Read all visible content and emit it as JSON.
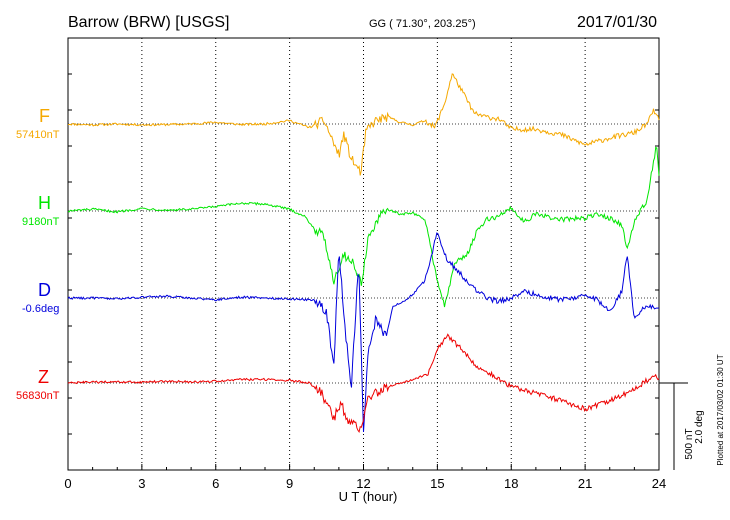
{
  "header": {
    "station": "Barrow (BRW)  [USGS]",
    "coords": "GG ( 71.30°, 203.25°)",
    "date": "2017/01/30"
  },
  "xlabel": "U T (hour)",
  "scale_label_nt": "500 nT",
  "scale_label_deg": "2.0 deg",
  "plotted_note": "Plotted at 2017/03/02 01:30 UT",
  "chart_data": {
    "type": "line",
    "xlim": [
      0,
      24
    ],
    "x_ticks": [
      0,
      3,
      6,
      9,
      12,
      15,
      18,
      21,
      24
    ],
    "x_tick_labels": [
      "0",
      "3",
      "6",
      "9",
      "12",
      "15",
      "18",
      "21",
      "24"
    ],
    "grid": "dotted vertical lines every 3 hours",
    "series": [
      {
        "name": "F",
        "baseline_label": "57410nT",
        "color": "#f5a800",
        "points": [
          [
            0,
            0
          ],
          [
            1,
            -5
          ],
          [
            2,
            0
          ],
          [
            3,
            -5
          ],
          [
            4,
            -3
          ],
          [
            5,
            0
          ],
          [
            6,
            10
          ],
          [
            7,
            -3
          ],
          [
            8,
            0
          ],
          [
            9,
            20
          ],
          [
            9.8,
            -20
          ],
          [
            10.4,
            20
          ],
          [
            10.7,
            -80
          ],
          [
            11,
            -180
          ],
          [
            11.2,
            -60
          ],
          [
            11.5,
            -200
          ],
          [
            11.9,
            -280
          ],
          [
            12.1,
            -40
          ],
          [
            12.5,
            20
          ],
          [
            13,
            40
          ],
          [
            13.5,
            10
          ],
          [
            14,
            -5
          ],
          [
            14.5,
            20
          ],
          [
            14.9,
            -20
          ],
          [
            15.3,
            120
          ],
          [
            15.6,
            290
          ],
          [
            16,
            190
          ],
          [
            16.5,
            60
          ],
          [
            17,
            40
          ],
          [
            17.5,
            30
          ],
          [
            18,
            -30
          ],
          [
            19,
            -30
          ],
          [
            20,
            -60
          ],
          [
            21,
            -120
          ],
          [
            22,
            -80
          ],
          [
            23,
            -50
          ],
          [
            23.5,
            0
          ],
          [
            23.8,
            80
          ],
          [
            24,
            20
          ]
        ]
      },
      {
        "name": "H",
        "baseline_label": "9180nT",
        "color": "#00e600",
        "points": [
          [
            0,
            0
          ],
          [
            1,
            10
          ],
          [
            2,
            -5
          ],
          [
            3,
            15
          ],
          [
            4,
            5
          ],
          [
            5,
            10
          ],
          [
            6,
            25
          ],
          [
            7,
            45
          ],
          [
            8,
            40
          ],
          [
            9,
            10
          ],
          [
            9.6,
            -30
          ],
          [
            10,
            -100
          ],
          [
            10.4,
            -150
          ],
          [
            10.8,
            -400
          ],
          [
            11.2,
            -250
          ],
          [
            11.6,
            -300
          ],
          [
            11.9,
            -420
          ],
          [
            12.2,
            -150
          ],
          [
            12.7,
            -30
          ],
          [
            13,
            10
          ],
          [
            13.5,
            -20
          ],
          [
            14,
            -10
          ],
          [
            14.5,
            -50
          ],
          [
            15,
            -400
          ],
          [
            15.3,
            -550
          ],
          [
            15.7,
            -300
          ],
          [
            16.2,
            -250
          ],
          [
            16.6,
            -120
          ],
          [
            17,
            -50
          ],
          [
            17.5,
            -30
          ],
          [
            18,
            20
          ],
          [
            18.5,
            -60
          ],
          [
            19,
            -20
          ],
          [
            20,
            -50
          ],
          [
            21,
            -40
          ],
          [
            21.5,
            -20
          ],
          [
            22,
            -40
          ],
          [
            22.5,
            -80
          ],
          [
            22.7,
            -230
          ],
          [
            23,
            -60
          ],
          [
            23.5,
            60
          ],
          [
            23.9,
            380
          ],
          [
            24,
            200
          ]
        ]
      },
      {
        "name": "D",
        "baseline_label": "-0.6deg",
        "color": "#0000dd",
        "points": [
          [
            0,
            0
          ],
          [
            1,
            0
          ],
          [
            2,
            -5
          ],
          [
            3,
            5
          ],
          [
            4,
            10
          ],
          [
            5,
            0
          ],
          [
            6,
            -10
          ],
          [
            7,
            5
          ],
          [
            8,
            0
          ],
          [
            9,
            -5
          ],
          [
            10,
            -10
          ],
          [
            10.5,
            -80
          ],
          [
            10.8,
            -400
          ],
          [
            11,
            300
          ],
          [
            11.2,
            -100
          ],
          [
            11.5,
            -520
          ],
          [
            11.8,
            200
          ],
          [
            12,
            -750
          ],
          [
            12.2,
            -300
          ],
          [
            12.5,
            -120
          ],
          [
            12.9,
            -220
          ],
          [
            13.2,
            -50
          ],
          [
            13.6,
            -20
          ],
          [
            14,
            20
          ],
          [
            14.5,
            100
          ],
          [
            15,
            380
          ],
          [
            15.4,
            220
          ],
          [
            15.8,
            160
          ],
          [
            16.3,
            80
          ],
          [
            17,
            0
          ],
          [
            17.5,
            -20
          ],
          [
            18,
            0
          ],
          [
            18.5,
            40
          ],
          [
            19,
            20
          ],
          [
            20,
            -10
          ],
          [
            21,
            10
          ],
          [
            21.5,
            -10
          ],
          [
            22,
            -80
          ],
          [
            22.5,
            40
          ],
          [
            22.7,
            260
          ],
          [
            23,
            -120
          ],
          [
            23.5,
            -40
          ],
          [
            24,
            -60
          ]
        ]
      },
      {
        "name": "Z",
        "baseline_label": "56830nT",
        "color": "#ee0000",
        "points": [
          [
            0,
            0
          ],
          [
            1,
            5
          ],
          [
            2,
            5
          ],
          [
            3,
            5
          ],
          [
            4,
            10
          ],
          [
            5,
            5
          ],
          [
            6,
            10
          ],
          [
            7,
            20
          ],
          [
            8,
            20
          ],
          [
            9,
            15
          ],
          [
            9.8,
            0
          ],
          [
            10.3,
            -60
          ],
          [
            10.8,
            -200
          ],
          [
            11.1,
            -120
          ],
          [
            11.4,
            -230
          ],
          [
            11.9,
            -260
          ],
          [
            12.2,
            -80
          ],
          [
            13,
            -20
          ],
          [
            14,
            20
          ],
          [
            14.6,
            50
          ],
          [
            15,
            200
          ],
          [
            15.4,
            270
          ],
          [
            15.8,
            220
          ],
          [
            16.5,
            110
          ],
          [
            17.5,
            20
          ],
          [
            18,
            -20
          ],
          [
            19,
            -60
          ],
          [
            20,
            -100
          ],
          [
            21,
            -150
          ],
          [
            22,
            -100
          ],
          [
            23,
            -40
          ],
          [
            23.8,
            50
          ],
          [
            24,
            20
          ]
        ]
      }
    ]
  }
}
